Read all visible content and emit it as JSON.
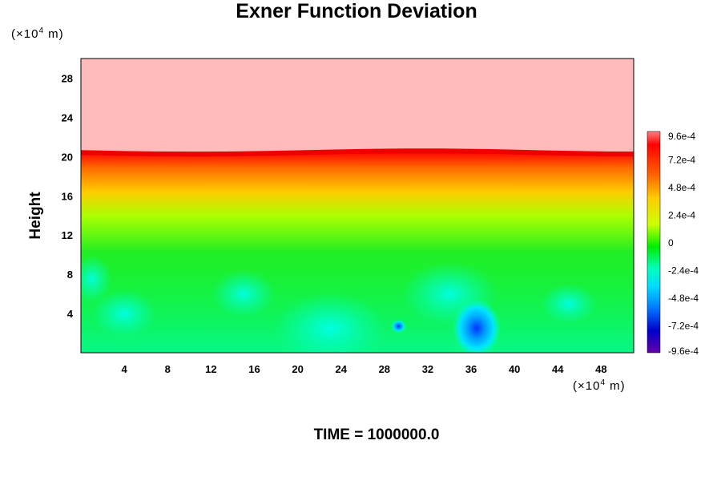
{
  "chart_data": {
    "type": "heatmap",
    "title": "Exner Function Deviation",
    "ylabel": "Height",
    "x_unit_prefix": "(×10",
    "x_unit_exp": "4",
    "x_unit_suffix": " m)",
    "y_unit_prefix": "(×10",
    "y_unit_exp": "4",
    "y_unit_suffix": " m)",
    "caption": "TIME = 1000000.0",
    "xlim": [
      0,
      51
    ],
    "ylim": [
      0,
      30
    ],
    "x_ticks": [
      4,
      8,
      12,
      16,
      20,
      24,
      28,
      32,
      36,
      40,
      44,
      48
    ],
    "y_ticks": [
      4,
      8,
      12,
      16,
      20,
      24,
      28
    ],
    "colorbar": {
      "range": [
        -0.00096,
        0.00096
      ],
      "tick_values": [
        0.00096,
        0.00072,
        0.00048,
        0.00024,
        0,
        -0.00024,
        -0.00048,
        -0.00072,
        -0.00096
      ],
      "tick_labels": [
        "9.6e-4",
        "7.2e-4",
        "4.8e-4",
        "2.4e-4",
        "0",
        "-2.4e-4",
        "-4.8e-4",
        "-7.2e-4",
        "-9.6e-4"
      ]
    },
    "field_description": {
      "upper_region_value": 0.00096,
      "interface_height": 20.5,
      "blue_spots": [
        {
          "x": 36.5,
          "y": 2.5,
          "value": -0.00055
        },
        {
          "x": 29.3,
          "y": 2.7,
          "value": -0.00048
        }
      ]
    }
  }
}
